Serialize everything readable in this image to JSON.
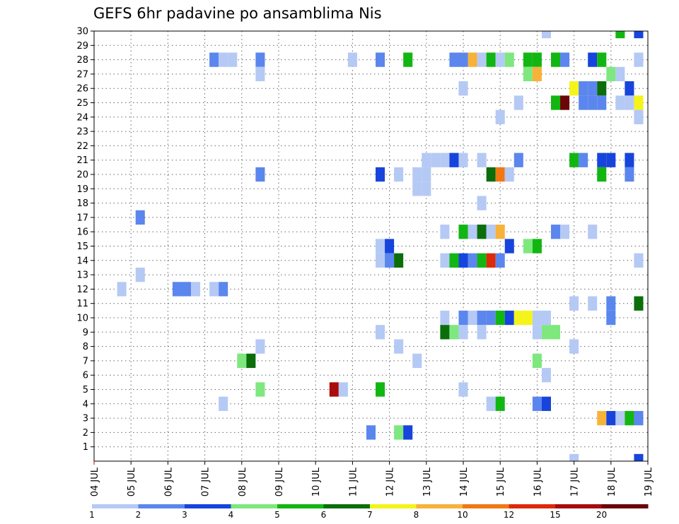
{
  "chart_data": {
    "type": "heatmap",
    "title": "GEFS 6hr padavine po ansamblima Nis",
    "xlabel": "",
    "ylabel": "",
    "x_ticks": [
      "04 JUL",
      "05 JUL",
      "06 JUL",
      "07 JUL",
      "08 JUL",
      "09 JUL",
      "10 JUL",
      "11 JUL",
      "12 JUL",
      "13 JUL",
      "14 JUL",
      "15 JUL",
      "16 JUL",
      "17 JUL",
      "18 JUL",
      "19 JUL"
    ],
    "y_ticks": [
      "1",
      "2",
      "3",
      "4",
      "5",
      "6",
      "7",
      "8",
      "9",
      "10",
      "11",
      "12",
      "13",
      "14",
      "15",
      "16",
      "17",
      "18",
      "19",
      "20",
      "21",
      "22",
      "23",
      "24",
      "25",
      "26",
      "27",
      "28",
      "29",
      "30"
    ],
    "xlim": [
      0,
      15
    ],
    "ylim": [
      0,
      30
    ],
    "grid": true,
    "colorbar": {
      "labels": [
        "1",
        "2",
        "3",
        "4",
        "5",
        "6",
        "7",
        "8",
        "10",
        "12",
        "15",
        "20"
      ],
      "colors": [
        "#b5c9f5",
        "#5b86ee",
        "#1744dc",
        "#7ee87e",
        "#12b612",
        "#0b6e0b",
        "#f4f41a",
        "#f7b23a",
        "#f07814",
        "#dc2a0a",
        "#a80c0c",
        "#6a0606"
      ]
    },
    "cells": [
      {
        "x": 12.25,
        "y": 30,
        "c": 0
      },
      {
        "x": 14.25,
        "y": 30,
        "c": 4
      },
      {
        "x": 14.75,
        "y": 30,
        "c": 2
      },
      {
        "x": 3.25,
        "y": 28,
        "c": 1
      },
      {
        "x": 3.5,
        "y": 28,
        "c": 0
      },
      {
        "x": 3.75,
        "y": 28,
        "c": 0
      },
      {
        "x": 4.5,
        "y": 28,
        "c": 1
      },
      {
        "x": 7,
        "y": 28,
        "c": 0
      },
      {
        "x": 7.75,
        "y": 28,
        "c": 1
      },
      {
        "x": 8.5,
        "y": 28,
        "c": 4
      },
      {
        "x": 9.75,
        "y": 28,
        "c": 1
      },
      {
        "x": 10,
        "y": 28,
        "c": 1
      },
      {
        "x": 10.25,
        "y": 28,
        "c": 7
      },
      {
        "x": 10.5,
        "y": 28,
        "c": 0
      },
      {
        "x": 10.75,
        "y": 28,
        "c": 4
      },
      {
        "x": 11,
        "y": 28,
        "c": 0
      },
      {
        "x": 11.25,
        "y": 28,
        "c": 3
      },
      {
        "x": 11.75,
        "y": 28,
        "c": 4
      },
      {
        "x": 12,
        "y": 28,
        "c": 4
      },
      {
        "x": 12.5,
        "y": 28,
        "c": 4
      },
      {
        "x": 12.75,
        "y": 28,
        "c": 1
      },
      {
        "x": 13.5,
        "y": 28,
        "c": 2
      },
      {
        "x": 13.75,
        "y": 28,
        "c": 4
      },
      {
        "x": 14.75,
        "y": 28,
        "c": 0
      },
      {
        "x": 4.5,
        "y": 27,
        "c": 0
      },
      {
        "x": 11.75,
        "y": 27,
        "c": 3
      },
      {
        "x": 12,
        "y": 27,
        "c": 7
      },
      {
        "x": 14,
        "y": 27,
        "c": 3
      },
      {
        "x": 14.25,
        "y": 27,
        "c": 0
      },
      {
        "x": 10,
        "y": 26,
        "c": 0
      },
      {
        "x": 13,
        "y": 26,
        "c": 6
      },
      {
        "x": 13.25,
        "y": 26,
        "c": 1
      },
      {
        "x": 13.5,
        "y": 26,
        "c": 1
      },
      {
        "x": 13.75,
        "y": 26,
        "c": 5
      },
      {
        "x": 14.5,
        "y": 26,
        "c": 2
      },
      {
        "x": 11.5,
        "y": 25,
        "c": 0
      },
      {
        "x": 12.5,
        "y": 25,
        "c": 4
      },
      {
        "x": 12.75,
        "y": 25,
        "c": 11
      },
      {
        "x": 13.25,
        "y": 25,
        "c": 1
      },
      {
        "x": 13.5,
        "y": 25,
        "c": 1
      },
      {
        "x": 13.75,
        "y": 25,
        "c": 1
      },
      {
        "x": 14.25,
        "y": 25,
        "c": 0
      },
      {
        "x": 14.5,
        "y": 25,
        "c": 0
      },
      {
        "x": 14.75,
        "y": 25,
        "c": 6
      },
      {
        "x": 11,
        "y": 24,
        "c": 0
      },
      {
        "x": 14.75,
        "y": 24,
        "c": 0
      },
      {
        "x": 9,
        "y": 21,
        "c": 0
      },
      {
        "x": 9.25,
        "y": 21,
        "c": 0
      },
      {
        "x": 9.5,
        "y": 21,
        "c": 0
      },
      {
        "x": 9.75,
        "y": 21,
        "c": 2
      },
      {
        "x": 10,
        "y": 21,
        "c": 0
      },
      {
        "x": 10.5,
        "y": 21,
        "c": 0
      },
      {
        "x": 11.5,
        "y": 21,
        "c": 1
      },
      {
        "x": 13,
        "y": 21,
        "c": 4
      },
      {
        "x": 13.25,
        "y": 21,
        "c": 1
      },
      {
        "x": 13.75,
        "y": 21,
        "c": 2
      },
      {
        "x": 14,
        "y": 21,
        "c": 2
      },
      {
        "x": 14.5,
        "y": 21,
        "c": 2
      },
      {
        "x": 4.5,
        "y": 20,
        "c": 1
      },
      {
        "x": 7.75,
        "y": 20,
        "c": 2
      },
      {
        "x": 8.25,
        "y": 20,
        "c": 0
      },
      {
        "x": 8.75,
        "y": 20,
        "c": 0
      },
      {
        "x": 9,
        "y": 20,
        "c": 0
      },
      {
        "x": 10.75,
        "y": 20,
        "c": 5
      },
      {
        "x": 11,
        "y": 20,
        "c": 8
      },
      {
        "x": 11.25,
        "y": 20,
        "c": 0
      },
      {
        "x": 13.75,
        "y": 20,
        "c": 4
      },
      {
        "x": 14.5,
        "y": 20,
        "c": 1
      },
      {
        "x": 8.75,
        "y": 19,
        "c": 0
      },
      {
        "x": 9,
        "y": 19,
        "c": 0
      },
      {
        "x": 10.5,
        "y": 18,
        "c": 0
      },
      {
        "x": 1.25,
        "y": 17,
        "c": 1
      },
      {
        "x": 9.5,
        "y": 16,
        "c": 0
      },
      {
        "x": 10,
        "y": 16,
        "c": 4
      },
      {
        "x": 10.25,
        "y": 16,
        "c": 0
      },
      {
        "x": 10.5,
        "y": 16,
        "c": 5
      },
      {
        "x": 10.75,
        "y": 16,
        "c": 0
      },
      {
        "x": 11,
        "y": 16,
        "c": 7
      },
      {
        "x": 12.5,
        "y": 16,
        "c": 1
      },
      {
        "x": 12.75,
        "y": 16,
        "c": 0
      },
      {
        "x": 13.5,
        "y": 16,
        "c": 0
      },
      {
        "x": 7.75,
        "y": 15,
        "c": 0
      },
      {
        "x": 8,
        "y": 15,
        "c": 2
      },
      {
        "x": 11.25,
        "y": 15,
        "c": 2
      },
      {
        "x": 11.75,
        "y": 15,
        "c": 3
      },
      {
        "x": 12,
        "y": 15,
        "c": 4
      },
      {
        "x": 7.75,
        "y": 14,
        "c": 0
      },
      {
        "x": 8,
        "y": 14,
        "c": 1
      },
      {
        "x": 8.25,
        "y": 14,
        "c": 5
      },
      {
        "x": 9.5,
        "y": 14,
        "c": 0
      },
      {
        "x": 9.75,
        "y": 14,
        "c": 4
      },
      {
        "x": 10,
        "y": 14,
        "c": 2
      },
      {
        "x": 10.25,
        "y": 14,
        "c": 1
      },
      {
        "x": 10.5,
        "y": 14,
        "c": 4
      },
      {
        "x": 10.75,
        "y": 14,
        "c": 9
      },
      {
        "x": 11,
        "y": 14,
        "c": 1
      },
      {
        "x": 14.75,
        "y": 14,
        "c": 0
      },
      {
        "x": 1.25,
        "y": 13,
        "c": 0
      },
      {
        "x": 0.75,
        "y": 12,
        "c": 0
      },
      {
        "x": 2.25,
        "y": 12,
        "c": 1
      },
      {
        "x": 2.5,
        "y": 12,
        "c": 1
      },
      {
        "x": 2.75,
        "y": 12,
        "c": 0
      },
      {
        "x": 3.25,
        "y": 12,
        "c": 0
      },
      {
        "x": 3.5,
        "y": 12,
        "c": 1
      },
      {
        "x": 13,
        "y": 11,
        "c": 0
      },
      {
        "x": 13.5,
        "y": 11,
        "c": 0
      },
      {
        "x": 14,
        "y": 11,
        "c": 1
      },
      {
        "x": 14.75,
        "y": 11,
        "c": 5
      },
      {
        "x": 9.5,
        "y": 10,
        "c": 0
      },
      {
        "x": 10,
        "y": 10,
        "c": 1
      },
      {
        "x": 10.25,
        "y": 10,
        "c": 0
      },
      {
        "x": 10.5,
        "y": 10,
        "c": 1
      },
      {
        "x": 10.75,
        "y": 10,
        "c": 1
      },
      {
        "x": 11,
        "y": 10,
        "c": 4
      },
      {
        "x": 11.25,
        "y": 10,
        "c": 2
      },
      {
        "x": 11.5,
        "y": 10,
        "c": 6
      },
      {
        "x": 11.75,
        "y": 10,
        "c": 6
      },
      {
        "x": 12,
        "y": 10,
        "c": 0
      },
      {
        "x": 12.25,
        "y": 10,
        "c": 0
      },
      {
        "x": 14,
        "y": 10,
        "c": 1
      },
      {
        "x": 7.75,
        "y": 9,
        "c": 0
      },
      {
        "x": 9.5,
        "y": 9,
        "c": 5
      },
      {
        "x": 9.75,
        "y": 9,
        "c": 3
      },
      {
        "x": 10,
        "y": 9,
        "c": 0
      },
      {
        "x": 10.5,
        "y": 9,
        "c": 0
      },
      {
        "x": 12,
        "y": 9,
        "c": 0
      },
      {
        "x": 12.25,
        "y": 9,
        "c": 3
      },
      {
        "x": 12.5,
        "y": 9,
        "c": 3
      },
      {
        "x": 4.5,
        "y": 8,
        "c": 0
      },
      {
        "x": 8.25,
        "y": 8,
        "c": 0
      },
      {
        "x": 13,
        "y": 8,
        "c": 0
      },
      {
        "x": 4,
        "y": 7,
        "c": 3
      },
      {
        "x": 4.25,
        "y": 7,
        "c": 5
      },
      {
        "x": 8.75,
        "y": 7,
        "c": 0
      },
      {
        "x": 12,
        "y": 7,
        "c": 3
      },
      {
        "x": 12.25,
        "y": 6,
        "c": 0
      },
      {
        "x": 4.5,
        "y": 5,
        "c": 3
      },
      {
        "x": 6.5,
        "y": 5,
        "c": 10
      },
      {
        "x": 6.75,
        "y": 5,
        "c": 0
      },
      {
        "x": 7.75,
        "y": 5,
        "c": 4
      },
      {
        "x": 10,
        "y": 5,
        "c": 0
      },
      {
        "x": 3.5,
        "y": 4,
        "c": 0
      },
      {
        "x": 10.75,
        "y": 4,
        "c": 0
      },
      {
        "x": 11,
        "y": 4,
        "c": 4
      },
      {
        "x": 12,
        "y": 4,
        "c": 1
      },
      {
        "x": 12.25,
        "y": 4,
        "c": 2
      },
      {
        "x": 13.75,
        "y": 3,
        "c": 7
      },
      {
        "x": 14,
        "y": 3,
        "c": 2
      },
      {
        "x": 14.25,
        "y": 3,
        "c": 0
      },
      {
        "x": 14.5,
        "y": 3,
        "c": 4
      },
      {
        "x": 14.75,
        "y": 3,
        "c": 1
      },
      {
        "x": 7.5,
        "y": 2,
        "c": 1
      },
      {
        "x": 8.25,
        "y": 2,
        "c": 3
      },
      {
        "x": 8.5,
        "y": 2,
        "c": 2
      },
      {
        "x": 13,
        "y": 0,
        "c": 0
      },
      {
        "x": 14.75,
        "y": 0,
        "c": 2
      }
    ]
  }
}
